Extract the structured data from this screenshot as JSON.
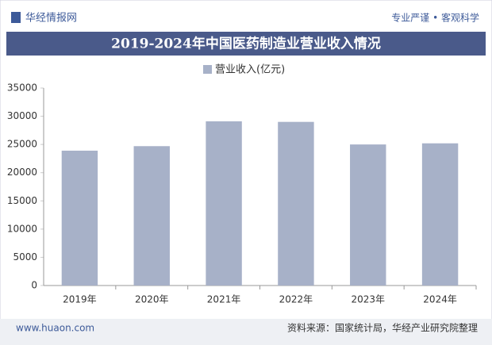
{
  "header": {
    "logo": "华经情报网",
    "slogan": "专业严谨 • 客观科学"
  },
  "chart_data": {
    "type": "bar",
    "title": "2019-2024年中国医药制造业营业收入情况",
    "categories": [
      "2019年",
      "2020年",
      "2021年",
      "2022年",
      "2023年",
      "2024年"
    ],
    "series": [
      {
        "name": "营业收入(亿元)",
        "color": "#a7b1c8",
        "values": [
          23900,
          24700,
          29100,
          29000,
          25000,
          25200
        ]
      }
    ],
    "ylim": [
      0,
      35000
    ],
    "yticks": [
      0,
      5000,
      10000,
      15000,
      20000,
      25000,
      30000,
      35000
    ],
    "grid": false
  },
  "footer": {
    "website": "www.huaon.com",
    "source": "资料来源：国家统计局，华经产业研究院整理"
  }
}
